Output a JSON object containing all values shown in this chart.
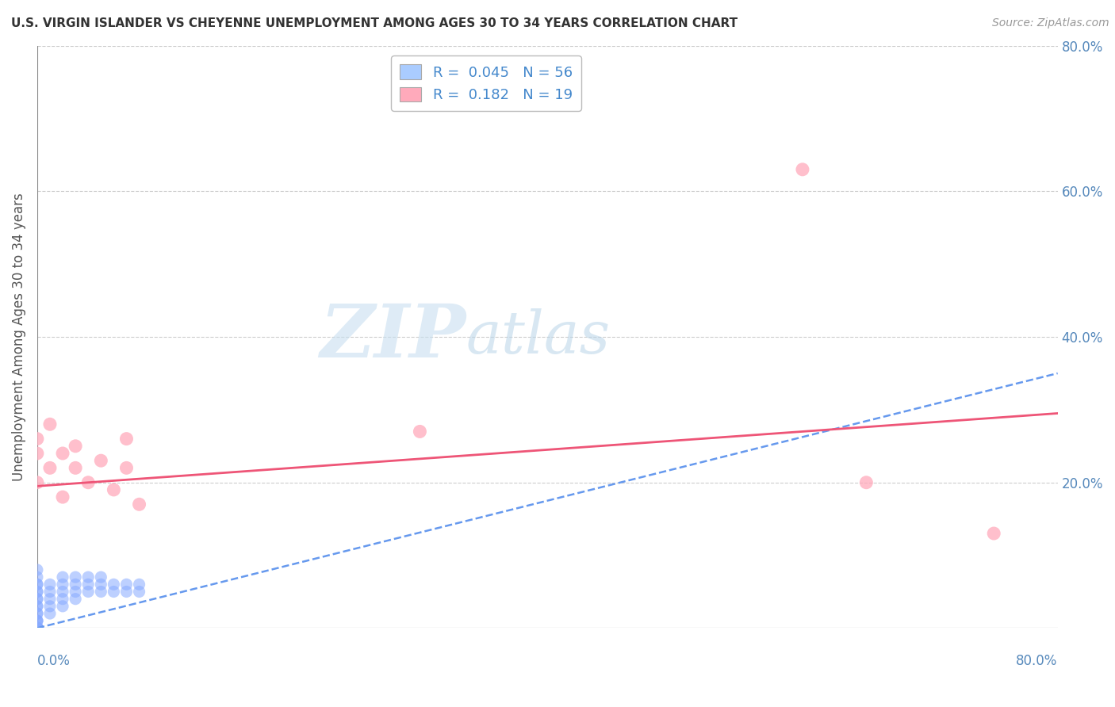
{
  "title": "U.S. VIRGIN ISLANDER VS CHEYENNE UNEMPLOYMENT AMONG AGES 30 TO 34 YEARS CORRELATION CHART",
  "source": "Source: ZipAtlas.com",
  "ylabel": "Unemployment Among Ages 30 to 34 years",
  "xlim": [
    0,
    0.8
  ],
  "ylim": [
    0,
    0.8
  ],
  "bottom_left_label": "0.0%",
  "bottom_right_label": "80.0%",
  "right_ytick_labels": [
    "20.0%",
    "40.0%",
    "60.0%",
    "80.0%"
  ],
  "right_ytick_vals": [
    0.2,
    0.4,
    0.6,
    0.8
  ],
  "legend_entries": [
    {
      "label": "R =  0.045   N = 56",
      "color": "#aaccff"
    },
    {
      "label": "R =  0.182   N = 19",
      "color": "#ffaabb"
    }
  ],
  "blue_scatter_x": [
    0.0,
    0.0,
    0.0,
    0.0,
    0.0,
    0.0,
    0.0,
    0.0,
    0.0,
    0.0,
    0.0,
    0.0,
    0.0,
    0.0,
    0.0,
    0.0,
    0.0,
    0.0,
    0.0,
    0.0,
    0.0,
    0.0,
    0.0,
    0.0,
    0.0,
    0.0,
    0.0,
    0.0,
    0.0,
    0.0,
    0.01,
    0.01,
    0.01,
    0.01,
    0.01,
    0.02,
    0.02,
    0.02,
    0.02,
    0.02,
    0.03,
    0.03,
    0.03,
    0.03,
    0.04,
    0.04,
    0.04,
    0.05,
    0.05,
    0.05,
    0.06,
    0.06,
    0.07,
    0.07,
    0.08,
    0.08
  ],
  "blue_scatter_y": [
    0.0,
    0.0,
    0.0,
    0.0,
    0.0,
    0.0,
    0.0,
    0.0,
    0.0,
    0.0,
    0.0,
    0.0,
    0.0,
    0.0,
    0.0,
    0.01,
    0.01,
    0.01,
    0.02,
    0.02,
    0.03,
    0.03,
    0.04,
    0.04,
    0.05,
    0.05,
    0.06,
    0.06,
    0.07,
    0.08,
    0.02,
    0.03,
    0.04,
    0.05,
    0.06,
    0.03,
    0.04,
    0.05,
    0.06,
    0.07,
    0.04,
    0.05,
    0.06,
    0.07,
    0.05,
    0.06,
    0.07,
    0.05,
    0.06,
    0.07,
    0.05,
    0.06,
    0.05,
    0.06,
    0.05,
    0.06
  ],
  "pink_scatter_x": [
    0.0,
    0.0,
    0.0,
    0.01,
    0.01,
    0.02,
    0.02,
    0.03,
    0.03,
    0.04,
    0.05,
    0.06,
    0.07,
    0.07,
    0.08,
    0.3,
    0.6,
    0.65,
    0.75
  ],
  "pink_scatter_y": [
    0.24,
    0.26,
    0.2,
    0.28,
    0.22,
    0.24,
    0.18,
    0.25,
    0.22,
    0.2,
    0.23,
    0.19,
    0.26,
    0.22,
    0.17,
    0.27,
    0.63,
    0.2,
    0.13
  ],
  "blue_line_x0": 0.0,
  "blue_line_y0": 0.0,
  "blue_line_x1": 0.8,
  "blue_line_y1": 0.35,
  "pink_line_x0": 0.0,
  "pink_line_y0": 0.195,
  "pink_line_x1": 0.8,
  "pink_line_y1": 0.295,
  "blue_line_color": "#6699ee",
  "pink_line_color": "#ee5577",
  "scatter_blue_color": "#88aaff",
  "scatter_pink_color": "#ffaabb",
  "watermark_zip": "ZIP",
  "watermark_atlas": "atlas",
  "background_color": "#ffffff",
  "grid_color": "#cccccc"
}
